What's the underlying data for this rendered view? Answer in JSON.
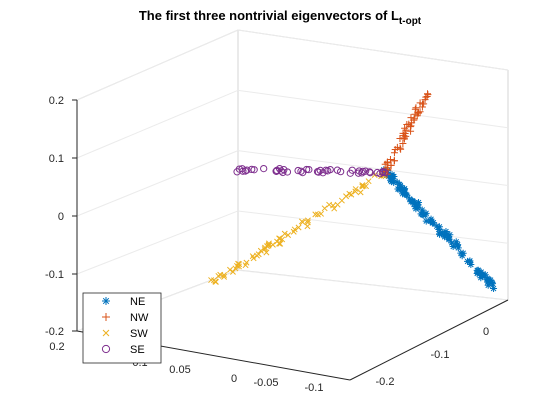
{
  "chart_data": {
    "type": "scatter",
    "title": "The first three nontrivial eigenvectors of L",
    "title_subscript": "t-opt",
    "axes3d": {
      "x_ticks": [
        "0.2",
        "0.1",
        "0.05",
        "0",
        "-0.05",
        "-0.1"
      ],
      "y_ticks": [
        "-0.2",
        "-0.1",
        "0"
      ],
      "z_ticks": [
        "0.2",
        "0.1",
        "0",
        "-0.1",
        "-0.2"
      ],
      "z_range": [
        -0.2,
        0.2
      ],
      "grid": true
    },
    "legend": {
      "placement": "bottom-left"
    },
    "series": [
      {
        "name": "NE",
        "marker": "*",
        "color": "#0072BD"
      },
      {
        "name": "NW",
        "marker": "+",
        "color": "#D95319"
      },
      {
        "name": "SW",
        "marker": "x",
        "color": "#EDB120"
      },
      {
        "name": "SE",
        "marker": "o",
        "color": "#7E2F8E"
      }
    ]
  }
}
